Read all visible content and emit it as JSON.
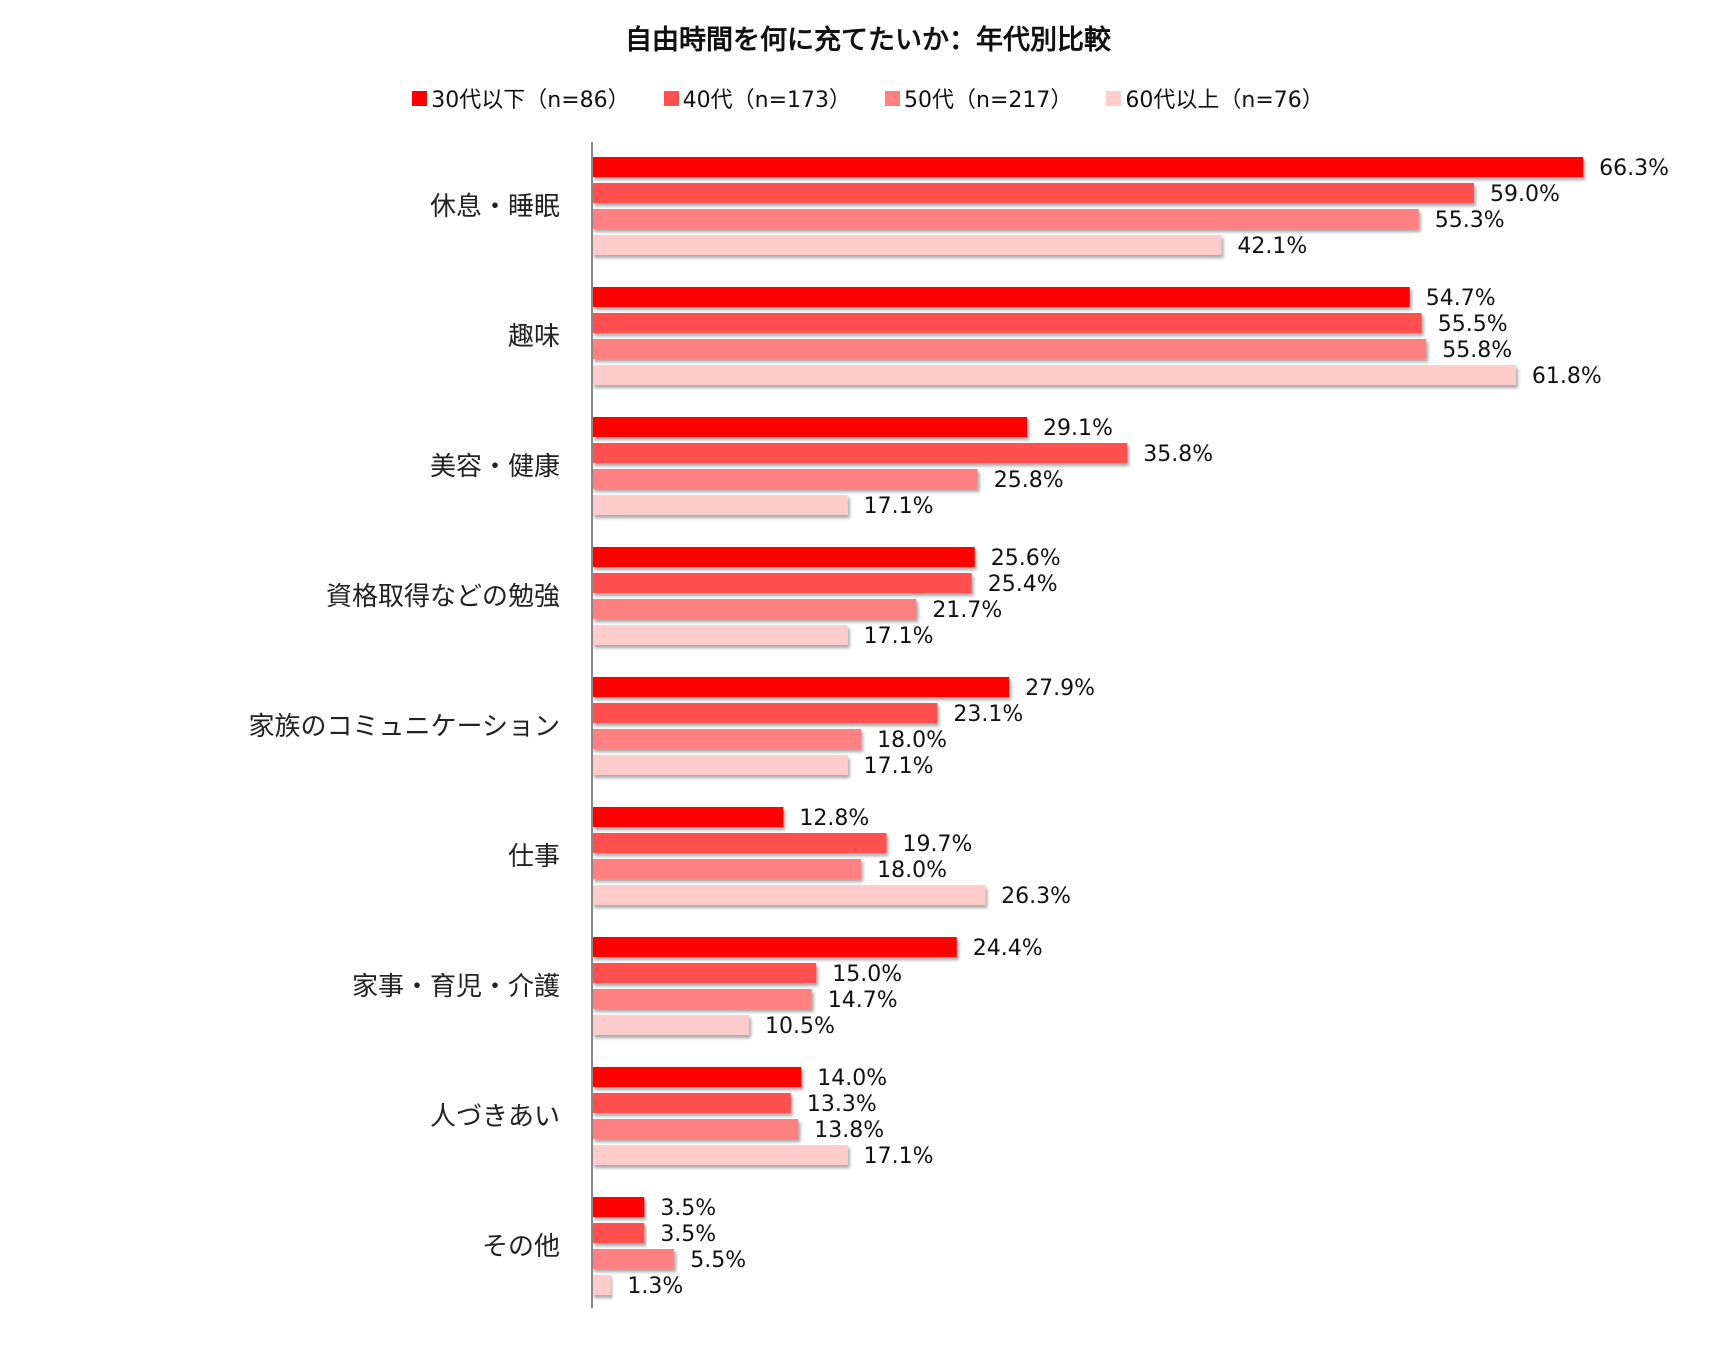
{
  "chart_data": {
    "type": "bar",
    "orientation": "horizontal",
    "title": "自由時間を何に充てたいか：年代別比較",
    "categories": [
      "休息・睡眠",
      "趣味",
      "美容・健康",
      "資格取得などの勉強",
      "家族のコミュニケーション",
      "仕事",
      "家事・育児・介護",
      "人づきあい",
      "その他"
    ],
    "series": [
      {
        "name": "30代以下（n=86）",
        "color": "#FF0000",
        "values": [
          66.3,
          54.7,
          29.1,
          25.6,
          27.9,
          12.8,
          24.4,
          14.0,
          3.5
        ]
      },
      {
        "name": "40代（n=173）",
        "color": "#FF5050",
        "values": [
          59.0,
          55.5,
          35.8,
          25.4,
          23.1,
          19.7,
          15.0,
          13.3,
          3.5
        ]
      },
      {
        "name": "50代（n=217）",
        "color": "#FF8080",
        "values": [
          55.3,
          55.8,
          25.8,
          21.7,
          18.0,
          18.0,
          14.7,
          13.8,
          5.5
        ]
      },
      {
        "name": "60代以上（n=76）",
        "color": "#FFCCCC",
        "values": [
          42.1,
          61.8,
          17.1,
          17.1,
          17.1,
          26.3,
          10.5,
          17.1,
          1.3
        ]
      }
    ],
    "value_format": "%",
    "legend": "top",
    "grid": false
  }
}
